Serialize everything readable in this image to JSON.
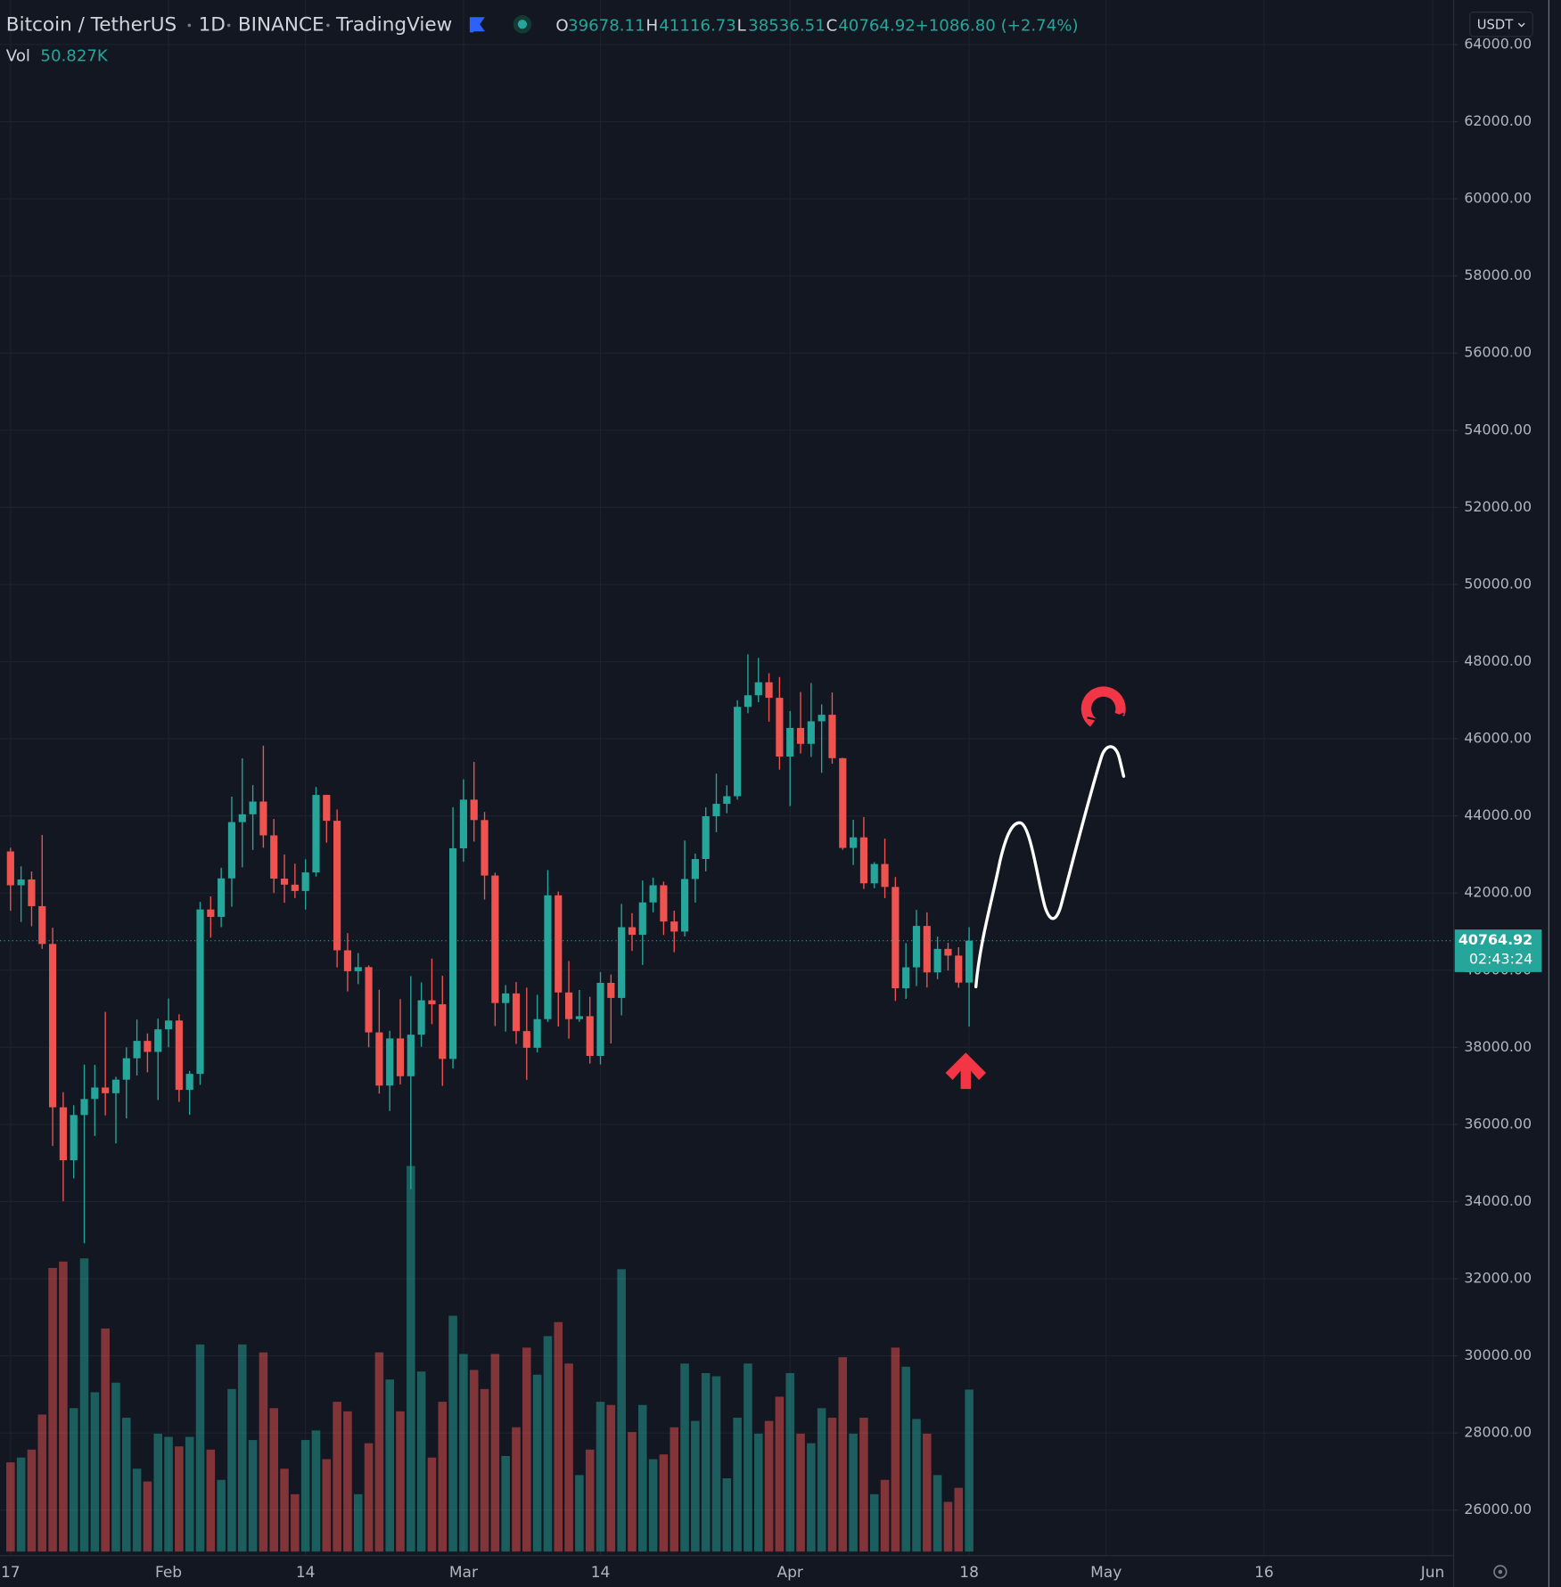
{
  "chart_data": {
    "type": "candlestick",
    "title": "Bitcoin / TetherUS",
    "interval": "1D",
    "exchange": "BINANCE",
    "source": "TradingView",
    "ohlc_labels": [
      "O",
      "H",
      "L",
      "C"
    ],
    "change": "+1086.80 (+2.74%)",
    "currency": "USDT",
    "countdown": "02:43:24",
    "up_color": "#26a69a",
    "down_color": "#ef5350",
    "grid": true,
    "x": [
      "01-17",
      "01-18",
      "01-19",
      "01-20",
      "01-21",
      "01-22",
      "01-23",
      "01-24",
      "01-25",
      "01-26",
      "01-27",
      "01-28",
      "01-29",
      "01-30",
      "01-31",
      "02-01",
      "02-02",
      "02-03",
      "02-04",
      "02-05",
      "02-06",
      "02-07",
      "02-08",
      "02-09",
      "02-10",
      "02-11",
      "02-12",
      "02-13",
      "02-14",
      "02-15",
      "02-16",
      "02-17",
      "02-18",
      "02-19",
      "02-20",
      "02-21",
      "02-22",
      "02-23",
      "02-24",
      "02-25",
      "02-26",
      "02-27",
      "02-28",
      "03-01",
      "03-02",
      "03-03",
      "03-04",
      "03-05",
      "03-06",
      "03-07",
      "03-08",
      "03-09",
      "03-10",
      "03-11",
      "03-12",
      "03-13",
      "03-14",
      "03-15",
      "03-16",
      "03-17",
      "03-18",
      "03-19",
      "03-20",
      "03-21",
      "03-22",
      "03-23",
      "03-24",
      "03-25",
      "03-26",
      "03-27",
      "03-28",
      "03-29",
      "03-30",
      "03-31",
      "04-01",
      "04-02",
      "04-03",
      "04-04",
      "04-05",
      "04-06",
      "04-07",
      "04-08",
      "04-09",
      "04-10",
      "04-11",
      "04-12",
      "04-13",
      "04-14",
      "04-15",
      "04-16",
      "04-17",
      "04-18"
    ],
    "open": [
      43079,
      42201,
      42352,
      41660,
      40680,
      36445,
      35071,
      36244,
      36660,
      36958,
      36810,
      37160,
      37716,
      38166,
      37881,
      38466,
      38694,
      36896,
      37311,
      41574,
      41382,
      42380,
      43839,
      44042,
      44372,
      43495,
      42373,
      42217,
      42053,
      42535,
      44544,
      43873,
      40515,
      39974,
      40079,
      38386,
      37008,
      38230,
      37250,
      38328,
      39219,
      39116,
      37699,
      43160,
      44421,
      43892,
      42454,
      39148,
      39397,
      38420,
      37988,
      38730,
      41941,
      39422,
      38730,
      38807,
      37777,
      39671,
      39280,
      41114,
      40917,
      41757,
      42201,
      41262,
      41002,
      42364,
      42882,
      43991,
      44313,
      44511,
      46827,
      47128,
      47465,
      47062,
      45538,
      46281,
      45868,
      46453,
      46622,
      45497,
      43170,
      43444,
      42252,
      42753,
      42158,
      39530,
      40074,
      41147,
      39942,
      40552,
      40378,
      39678.11
    ],
    "high": [
      43176,
      42691,
      42559,
      43505,
      41100,
      36835,
      36499,
      37550,
      37545,
      38919,
      37234,
      38000,
      38720,
      38359,
      38744,
      39265,
      38855,
      37387,
      41772,
      41913,
      42656,
      44500,
      45492,
      44799,
      45821,
      43920,
      42999,
      42760,
      42876,
      44751,
      44549,
      44164,
      40959,
      40444,
      40125,
      39494,
      38429,
      39249,
      39843,
      39683,
      40300,
      39855,
      44225,
      44949,
      45400,
      44101,
      42527,
      39613,
      39693,
      39547,
      39362,
      42594,
      42039,
      40236,
      39486,
      39310,
      39947,
      39887,
      41718,
      41478,
      42325,
      42400,
      42296,
      41544,
      43361,
      43025,
      44220,
      45094,
      44792,
      46999,
      48189,
      48096,
      47700,
      47600,
      46720,
      47213,
      47444,
      46890,
      47200,
      45507,
      43900,
      43970,
      42800,
      43410,
      42414,
      40700,
      41561,
      41500,
      40870,
      40709,
      40595,
      41116.73
    ],
    "low": [
      41540,
      41250,
      41138,
      40553,
      35440,
      34008,
      34601,
      32917,
      35701,
      36234,
      35507,
      36155,
      37268,
      37351,
      36633,
      38000,
      36586,
      36250,
      37026,
      40843,
      41116,
      41645,
      42666,
      43117,
      43174,
      42000,
      41748,
      41870,
      41571,
      42427,
      43307,
      40073,
      39450,
      39639,
      38000,
      36800,
      36350,
      37036,
      34322,
      38014,
      38600,
      37000,
      37450,
      42809,
      43334,
      41832,
      38550,
      38407,
      38088,
      37155,
      37867,
      38656,
      38539,
      38223,
      38660,
      37578,
      37555,
      38098,
      38828,
      40500,
      40135,
      41499,
      40911,
      40467,
      40875,
      41751,
      42560,
      43579,
      44071,
      44421,
      46663,
      46950,
      46445,
      45200,
      44255,
      45620,
      45530,
      45118,
      45353,
      43121,
      42727,
      42107,
      42125,
      41868,
      39200,
      39254,
      39588,
      39551,
      39766,
      39991,
      39546,
      38536.51
    ],
    "close": [
      42201,
      42352,
      41660,
      40680,
      36445,
      35071,
      36244,
      36660,
      36958,
      36810,
      37160,
      37716,
      38166,
      37881,
      38466,
      38694,
      36896,
      37311,
      41574,
      41382,
      42380,
      43839,
      44042,
      44372,
      43495,
      42373,
      42217,
      42053,
      42535,
      44544,
      43873,
      40515,
      39974,
      40079,
      38386,
      37008,
      38230,
      37250,
      38328,
      39219,
      39116,
      37699,
      43160,
      44421,
      43892,
      42454,
      39148,
      39397,
      38420,
      37988,
      38730,
      41941,
      39422,
      38730,
      38807,
      37777,
      39671,
      39280,
      41114,
      40917,
      41757,
      42201,
      41262,
      41002,
      42364,
      42882,
      43991,
      44313,
      44511,
      46827,
      47128,
      47465,
      47062,
      45538,
      46281,
      45868,
      46453,
      46622,
      45497,
      43170,
      43444,
      42252,
      42753,
      42158,
      39530,
      40074,
      41147,
      39942,
      40552,
      40378,
      39678,
      40764.92
    ],
    "volume": {
      "name": "Vol",
      "last_label": "50.827K",
      "values": [
        28,
        29.5,
        32,
        43,
        89,
        91,
        45,
        92,
        50,
        70,
        53,
        42,
        26,
        22,
        37,
        36,
        33,
        36,
        65,
        32,
        22.5,
        51,
        65,
        35,
        62.5,
        45,
        26,
        18,
        35,
        38,
        29,
        47,
        44,
        18,
        34,
        62.5,
        54,
        44,
        121,
        56.5,
        29.5,
        47,
        74,
        62,
        57,
        51,
        62,
        30,
        39,
        64,
        55.5,
        67.6,
        72,
        59,
        24,
        32,
        47,
        46,
        88.6,
        37.5,
        46,
        29,
        30.5,
        39,
        59,
        41,
        56,
        55,
        23,
        42,
        59,
        37,
        41,
        48.6,
        56,
        37,
        34,
        45,
        42,
        61,
        37,
        42,
        18,
        22.5,
        64,
        58,
        41.6,
        37,
        24,
        15.6,
        20,
        50.827
      ]
    },
    "ylim": [
      24820,
      65155
    ],
    "yticks": [
      {
        "value": 26000,
        "label": "26000.00"
      },
      {
        "value": 28000,
        "label": "28000.00"
      },
      {
        "value": 30000,
        "label": "30000.00"
      },
      {
        "value": 32000,
        "label": "32000.00"
      },
      {
        "value": 34000,
        "label": "34000.00"
      },
      {
        "value": 36000,
        "label": "36000.00"
      },
      {
        "value": 38000,
        "label": "38000.00"
      },
      {
        "value": 40000,
        "label": "40000.00"
      },
      {
        "value": 42000,
        "label": "42000.00"
      },
      {
        "value": 44000,
        "label": "44000.00"
      },
      {
        "value": 46000,
        "label": "46000.00"
      },
      {
        "value": 48000,
        "label": "48000.00"
      },
      {
        "value": 50000,
        "label": "50000.00"
      },
      {
        "value": 52000,
        "label": "52000.00"
      },
      {
        "value": 54000,
        "label": "54000.00"
      },
      {
        "value": 56000,
        "label": "56000.00"
      },
      {
        "value": 58000,
        "label": "58000.00"
      },
      {
        "value": 60000,
        "label": "60000.00"
      },
      {
        "value": 62000,
        "label": "62000.00"
      },
      {
        "value": 64000,
        "label": "64000.00"
      }
    ],
    "xlim": [
      "01-16",
      "06-03"
    ],
    "xticks": [
      {
        "value": "01-17",
        "label": "17"
      },
      {
        "value": "02-01",
        "label": "Feb"
      },
      {
        "value": "02-14",
        "label": "14"
      },
      {
        "value": "03-01",
        "label": "Mar"
      },
      {
        "value": "03-14",
        "label": "14"
      },
      {
        "value": "04-01",
        "label": "Apr"
      },
      {
        "value": "04-18",
        "label": "18"
      },
      {
        "value": "05-01",
        "label": "May"
      },
      {
        "value": "05-16",
        "label": "16"
      },
      {
        "value": "06-01",
        "label": "Jun"
      }
    ]
  }
}
